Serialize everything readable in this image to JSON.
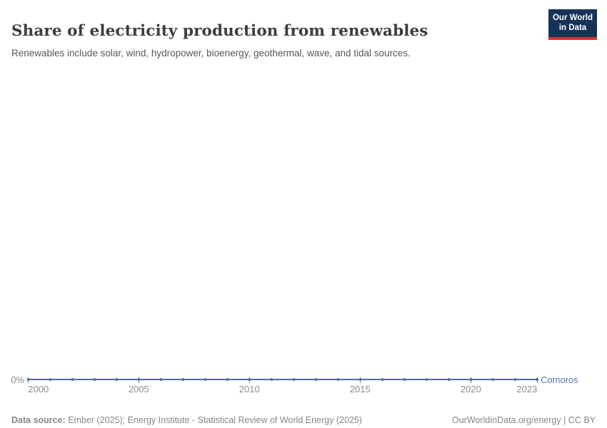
{
  "header": {
    "title": "Share of electricity production from renewables",
    "subtitle": "Renewables include solar, wind, hydropower, bioenergy, geothermal, wave, and tidal sources.",
    "logo": {
      "line1": "Our World",
      "line2": "in Data",
      "bg_color": "#163357",
      "accent_color": "#d7352e"
    }
  },
  "chart_data": {
    "type": "line",
    "title": "Share of electricity production from renewables",
    "subtitle": "Renewables include solar, wind, hydropower, bioenergy, geothermal, wave, and tidal sources.",
    "x": [
      2000,
      2001,
      2002,
      2003,
      2004,
      2005,
      2006,
      2007,
      2008,
      2009,
      2010,
      2011,
      2012,
      2013,
      2014,
      2015,
      2016,
      2017,
      2018,
      2019,
      2020,
      2021,
      2022,
      2023
    ],
    "series": [
      {
        "name": "Comoros",
        "color": "#4d6ba8",
        "values": [
          0,
          0,
          0,
          0,
          0,
          0,
          0,
          0,
          0,
          0,
          0,
          0,
          0,
          0,
          0,
          0,
          0,
          0,
          0,
          0,
          0,
          0,
          0,
          0
        ],
        "unit": "%"
      }
    ],
    "x_ticks": [
      2000,
      2005,
      2010,
      2015,
      2020,
      2023
    ],
    "y_ticks": [
      "0%"
    ],
    "xlim": [
      2000,
      2023
    ],
    "ylim": [
      0,
      0
    ],
    "grid": false,
    "legend_position": "end-of-line"
  },
  "axis": {
    "zero_label": "0%",
    "series_label": "Comoros",
    "label_color": "#8b8b8b",
    "line_color": "#4d6ba8",
    "series_label_color": "#5277b4"
  },
  "footer": {
    "datasource_label": "Data source:",
    "datasource_text": " Ember (2025); Energy Institute - Statistical Review of World Energy (2025)",
    "attribution": "OurWorldinData.org/energy | CC BY"
  }
}
